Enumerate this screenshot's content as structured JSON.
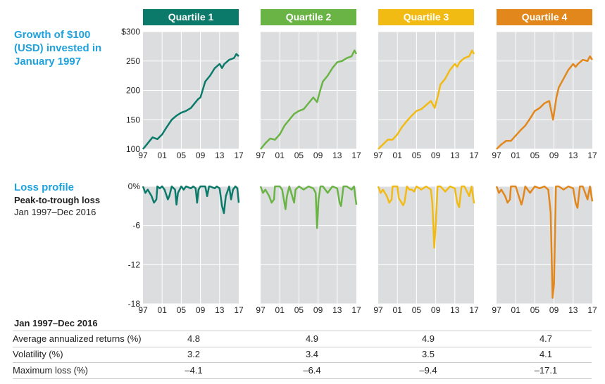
{
  "left_labels": {
    "growth_title": "Growth of $100 (USD) invested in January 1997",
    "loss_title": "Loss profile",
    "loss_subtitle": "Peak-to-trough loss",
    "loss_period": "Jan 1997–Dec 2016"
  },
  "colors": {
    "title_blue": "#1ea1dc",
    "grid_bg": "#dcdddf",
    "q1": "#0b7a6a",
    "q2": "#6ab445",
    "q3": "#f2bb13",
    "q4": "#e2871c"
  },
  "chart_data": [
    {
      "type": "line",
      "title": "Growth of $100 (USD) invested in January 1997",
      "ylim": [
        100,
        300
      ],
      "yticks": [
        "$300",
        "250",
        "200",
        "150",
        "100"
      ],
      "xticks": [
        "97",
        "01",
        "05",
        "09",
        "13",
        "17"
      ],
      "xlim": [
        1997,
        2017
      ],
      "grid": true,
      "series": [
        {
          "name": "Quartile 1",
          "x": [
            1997,
            1998,
            1999,
            2000,
            2001,
            2002,
            2003,
            2004,
            2005,
            2006,
            2007,
            2008,
            2008.5,
            2009,
            2010,
            2011,
            2012,
            2013,
            2013.5,
            2014,
            2015,
            2016,
            2016.5,
            2017
          ],
          "values": [
            100,
            110,
            120,
            117,
            125,
            138,
            150,
            157,
            162,
            165,
            170,
            180,
            185,
            188,
            215,
            225,
            238,
            245,
            238,
            245,
            252,
            255,
            262,
            258
          ]
        },
        {
          "name": "Quartile 2",
          "x": [
            1997,
            1998,
            1999,
            2000,
            2001,
            2002,
            2003,
            2004,
            2005,
            2006,
            2007,
            2008,
            2008.8,
            2009.3,
            2010,
            2011,
            2012,
            2013,
            2014,
            2015,
            2016,
            2016.6,
            2017
          ],
          "values": [
            100,
            110,
            118,
            116,
            125,
            140,
            150,
            160,
            165,
            168,
            178,
            188,
            180,
            196,
            215,
            225,
            238,
            248,
            250,
            255,
            258,
            268,
            262
          ]
        },
        {
          "name": "Quartile 3",
          "x": [
            1997,
            1998,
            1999,
            2000,
            2001,
            2002,
            2003,
            2004,
            2005,
            2006,
            2007,
            2008,
            2008.8,
            2009.5,
            2010,
            2011,
            2012,
            2013,
            2013.5,
            2014,
            2015,
            2016,
            2016.6,
            2017
          ],
          "values": [
            100,
            108,
            116,
            116,
            125,
            138,
            148,
            157,
            165,
            168,
            175,
            182,
            170,
            192,
            210,
            220,
            235,
            245,
            240,
            248,
            255,
            258,
            268,
            262
          ]
        },
        {
          "name": "Quartile 4",
          "x": [
            1997,
            1998,
            1999,
            2000,
            2001,
            2002,
            2003,
            2004,
            2005,
            2006,
            2007,
            2008,
            2008.8,
            2009.5,
            2010,
            2011,
            2012,
            2013,
            2013.5,
            2014,
            2015,
            2016,
            2016.5,
            2017
          ],
          "values": [
            100,
            108,
            114,
            114,
            123,
            132,
            140,
            152,
            165,
            170,
            178,
            182,
            150,
            188,
            205,
            220,
            235,
            245,
            240,
            245,
            252,
            250,
            258,
            252
          ]
        }
      ]
    },
    {
      "type": "line",
      "title": "Loss profile",
      "ylim": [
        -18,
        0
      ],
      "yticks": [
        "0%",
        "-6",
        "-12",
        "-18"
      ],
      "xticks": [
        "97",
        "01",
        "05",
        "09",
        "13",
        "17"
      ],
      "xlim": [
        1997,
        2017
      ],
      "grid": true,
      "series": [
        {
          "name": "Quartile 1",
          "x": [
            1997,
            1997.5,
            1998,
            1998.8,
            1999.3,
            1999.8,
            2000,
            2000.5,
            2001,
            2001.5,
            2002.2,
            2002.5,
            2003,
            2003.7,
            2004,
            2004.3,
            2005,
            2005.5,
            2006,
            2007,
            2007.5,
            2008,
            2008.3,
            2008.6,
            2009,
            2010,
            2010.4,
            2010.8,
            2011,
            2012,
            2012.4,
            2013,
            2013.5,
            2013.9,
            2014.3,
            2015,
            2015.4,
            2015.8,
            2016.3,
            2016.7,
            2017
          ],
          "values": [
            0,
            -1,
            -0.5,
            -1.5,
            -2.5,
            -2,
            0,
            -0.3,
            0,
            -0.5,
            -2,
            -1.5,
            0,
            -0.5,
            -2.8,
            -1,
            0,
            -0.5,
            0,
            -0.3,
            0,
            -0.3,
            -2.5,
            -0.5,
            0,
            0,
            -1.5,
            0,
            0,
            -0.3,
            0,
            -0.3,
            -3,
            -4.1,
            -1.5,
            0,
            -2,
            -0.5,
            0,
            -0.3,
            -2.5
          ]
        },
        {
          "name": "Quartile 2",
          "x": [
            1997,
            1997.5,
            1998,
            1998.8,
            1999.3,
            1999.8,
            2000,
            2001,
            2001.5,
            2002.2,
            2002.5,
            2003,
            2004,
            2004.3,
            2005,
            2006,
            2007,
            2008,
            2008.5,
            2008.8,
            2009.1,
            2009.5,
            2010,
            2011,
            2012,
            2013,
            2013.5,
            2013.8,
            2014.3,
            2015,
            2016,
            2016.5,
            2017
          ],
          "values": [
            0,
            -1,
            -0.5,
            -1.5,
            -2.5,
            -2,
            0,
            0,
            -0.5,
            -3.5,
            -1.5,
            0,
            -2.5,
            -0.5,
            0,
            -0.5,
            0,
            -0.3,
            -1,
            -6.4,
            -2,
            0,
            0,
            -1,
            0,
            -0.3,
            -2.5,
            -3,
            0,
            0,
            -0.5,
            0,
            -2.8
          ]
        },
        {
          "name": "Quartile 3",
          "x": [
            1997,
            1997.5,
            1998,
            1998.8,
            1999.3,
            1999.8,
            2000,
            2001,
            2001.3,
            2002.2,
            2002.5,
            2003,
            2003.5,
            2004,
            2004.5,
            2005,
            2006,
            2007,
            2008,
            2008.3,
            2008.7,
            2009,
            2009.4,
            2010,
            2011,
            2012,
            2013,
            2013.5,
            2013.9,
            2014.4,
            2015,
            2016,
            2016.5,
            2017
          ],
          "values": [
            0,
            -1,
            -0.5,
            -1.5,
            -2.5,
            -2,
            0,
            0,
            -1.8,
            -2.9,
            -2.4,
            0,
            -0.5,
            -0.5,
            -0.8,
            0,
            -0.5,
            0,
            -0.5,
            -2.5,
            -9.4,
            -6,
            0,
            0,
            -0.8,
            0,
            -0.3,
            -2.5,
            -3.2,
            0,
            0,
            -1.5,
            0,
            -2.6
          ]
        },
        {
          "name": "Quartile 4",
          "x": [
            1997,
            1997.5,
            1998,
            1998.8,
            1999.3,
            1999.8,
            2000,
            2001,
            2002.2,
            2002.5,
            2003,
            2003.5,
            2004,
            2005,
            2006,
            2007,
            2007.8,
            2008.3,
            2008.7,
            2009,
            2009.4,
            2010,
            2011,
            2012,
            2013,
            2013.5,
            2013.9,
            2014.4,
            2015,
            2016,
            2016.5,
            2017
          ],
          "values": [
            0,
            -1,
            -0.5,
            -1.5,
            -2.5,
            -2,
            0,
            0,
            -2.8,
            -2,
            0,
            -0.5,
            -1,
            0,
            -0.3,
            0,
            -0.5,
            -4,
            -17.1,
            -15,
            0,
            0,
            -0.5,
            0,
            -0.3,
            -2.5,
            -3.3,
            0,
            0,
            -2,
            0,
            -2.3
          ]
        }
      ]
    }
  ],
  "quartiles": [
    "Quartile 1",
    "Quartile 2",
    "Quartile 3",
    "Quartile 4"
  ],
  "table": {
    "period": "Jan 1997–Dec 2016",
    "rows": [
      {
        "label": "Average annualized returns (%)",
        "values": [
          "4.8",
          "4.9",
          "4.9",
          "4.7"
        ]
      },
      {
        "label": "Volatility (%)",
        "values": [
          "3.2",
          "3.4",
          "3.5",
          "4.1"
        ]
      },
      {
        "label": "Maximum loss (%)",
        "values": [
          "–4.1",
          "–6.4",
          "–9.4",
          "–17.1"
        ]
      }
    ]
  }
}
